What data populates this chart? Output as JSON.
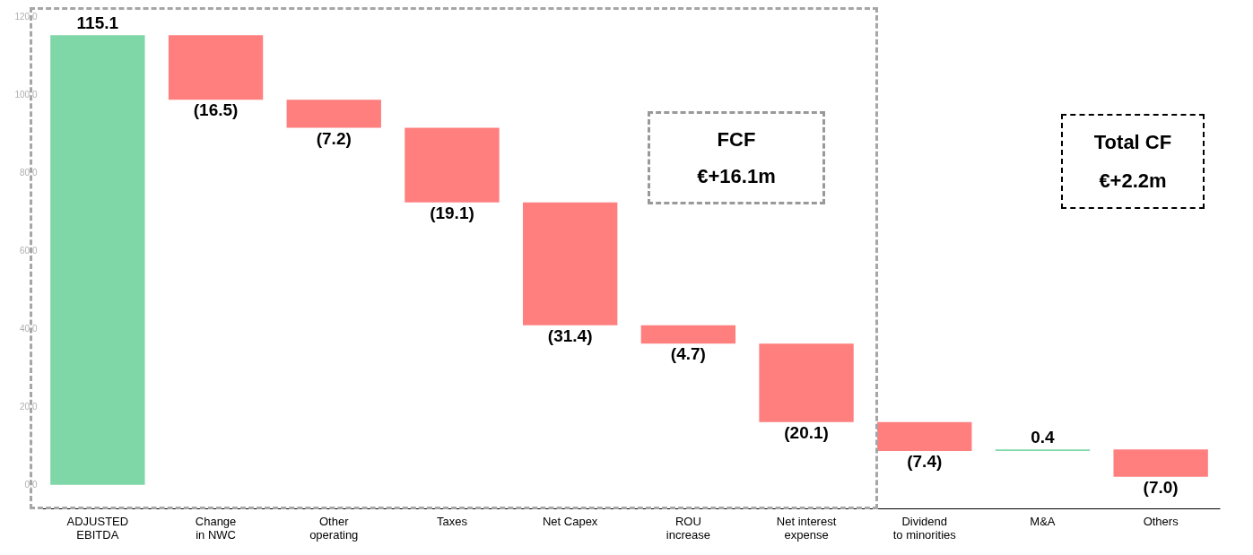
{
  "chart_data": {
    "type": "bar",
    "categories": [
      "ADJUSTED\nEBITDA",
      "Change\nin NWC",
      "Other\noperating",
      "Taxes",
      "Net Capex",
      "ROU\nincrease",
      "Net interest\nexpense",
      "Dividend\nto minorities",
      "M&A",
      "Others"
    ],
    "values": [
      115.1,
      -16.5,
      -7.2,
      -19.1,
      -31.4,
      -4.7,
      -20.1,
      -7.4,
      0.4,
      -7.0
    ],
    "base": [
      0,
      115.1,
      98.6,
      91.4,
      72.3,
      40.9,
      36.2,
      16.1,
      8.7,
      9.1
    ],
    "colors": [
      "#7fd7a7",
      "#ff7f7f",
      "#ff7f7f",
      "#ff7f7f",
      "#ff7f7f",
      "#ff7f7f",
      "#ff7f7f",
      "#ff7f7f",
      "#7fd7a7",
      "#ff7f7f"
    ],
    "value_labels": [
      "115.1",
      "(16.5)",
      "(7.2)",
      "(19.1)",
      "(31.4)",
      "(4.7)",
      "(20.1)",
      "(7.4)",
      "0.4",
      "(7.0)"
    ],
    "annotations": [
      "FCF",
      "€+16.1m",
      "Total CF",
      "€+2.2m"
    ],
    "ylim": [
      -6,
      120
    ],
    "yticks": [
      {
        "value": 0,
        "label": "0.0"
      },
      {
        "value": 20,
        "label": "20.0"
      },
      {
        "value": 40,
        "label": "40.0"
      },
      {
        "value": 60,
        "label": "60.0"
      },
      {
        "value": 80,
        "label": "80.0"
      },
      {
        "value": 100,
        "label": "100.0"
      },
      {
        "value": 120,
        "label": "120.0"
      }
    ]
  }
}
